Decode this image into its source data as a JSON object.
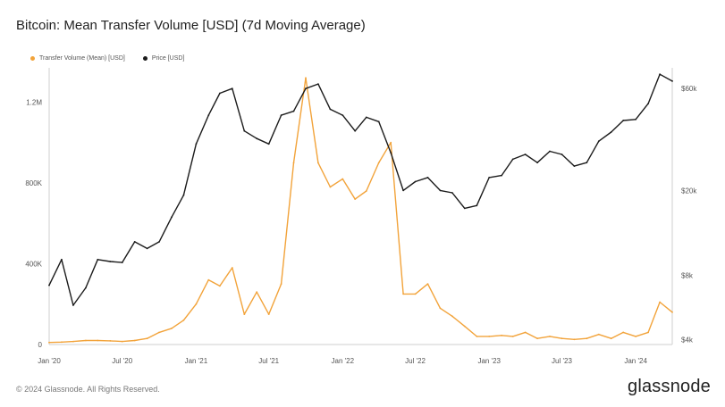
{
  "title": "Bitcoin: Mean Transfer Volume [USD] (7d Moving Average)",
  "footer": "© 2024 Glassnode. All Rights Reserved.",
  "brand": "glassnode",
  "colors": {
    "transfer_volume": "#f2a33a",
    "price": "#1b1b1b",
    "axis": "#cfcfcf",
    "text": "#555555"
  },
  "chart_data": {
    "type": "line",
    "title": "Bitcoin: Mean Transfer Volume [USD] (7d Moving Average)",
    "legend": {
      "placement": "top-left",
      "entries": [
        "Transfer Volume (Mean) [USD]",
        "Price [USD]"
      ]
    },
    "grid": false,
    "x_ticks": [
      "Jan '20",
      "Jul '20",
      "Jan '21",
      "Jul '21",
      "Jan '22",
      "Jul '22",
      "Jan '23",
      "Jul '23",
      "Jan '24"
    ],
    "x_range": [
      "2020-01-01",
      "2024-04-01"
    ],
    "y_left": {
      "ticks": [
        "0",
        "400K",
        "800K",
        "1.2M"
      ],
      "tick_values": [
        0,
        400000,
        800000,
        1200000
      ],
      "range": [
        0,
        1370000
      ]
    },
    "y_right": {
      "scale": "log",
      "ticks": [
        "$4k",
        "$8k",
        "$20k",
        "$60k"
      ],
      "tick_values": [
        4000,
        8000,
        20000,
        60000
      ],
      "range": [
        3800,
        75000
      ]
    },
    "series": [
      {
        "name": "Transfer Volume (Mean) [USD]",
        "axis": "left",
        "points": [
          [
            "2020-01-01",
            10000
          ],
          [
            "2020-02-01",
            12000
          ],
          [
            "2020-03-01",
            15000
          ],
          [
            "2020-04-01",
            20000
          ],
          [
            "2020-05-01",
            20000
          ],
          [
            "2020-06-01",
            18000
          ],
          [
            "2020-07-01",
            15000
          ],
          [
            "2020-08-01",
            20000
          ],
          [
            "2020-09-01",
            30000
          ],
          [
            "2020-10-01",
            60000
          ],
          [
            "2020-11-01",
            80000
          ],
          [
            "2020-12-01",
            120000
          ],
          [
            "2021-01-01",
            200000
          ],
          [
            "2021-02-01",
            320000
          ],
          [
            "2021-03-01",
            290000
          ],
          [
            "2021-04-01",
            380000
          ],
          [
            "2021-05-01",
            150000
          ],
          [
            "2021-06-01",
            260000
          ],
          [
            "2021-07-01",
            150000
          ],
          [
            "2021-08-01",
            300000
          ],
          [
            "2021-09-01",
            900000
          ],
          [
            "2021-10-01",
            1320000
          ],
          [
            "2021-11-01",
            900000
          ],
          [
            "2021-12-01",
            780000
          ],
          [
            "2022-01-01",
            820000
          ],
          [
            "2022-02-01",
            720000
          ],
          [
            "2022-03-01",
            760000
          ],
          [
            "2022-04-01",
            900000
          ],
          [
            "2022-05-01",
            1000000
          ],
          [
            "2022-06-01",
            250000
          ],
          [
            "2022-07-01",
            250000
          ],
          [
            "2022-08-01",
            300000
          ],
          [
            "2022-09-01",
            180000
          ],
          [
            "2022-10-01",
            140000
          ],
          [
            "2022-11-01",
            90000
          ],
          [
            "2022-12-01",
            40000
          ],
          [
            "2023-01-01",
            40000
          ],
          [
            "2023-02-01",
            45000
          ],
          [
            "2023-03-01",
            40000
          ],
          [
            "2023-04-01",
            60000
          ],
          [
            "2023-05-01",
            30000
          ],
          [
            "2023-06-01",
            40000
          ],
          [
            "2023-07-01",
            30000
          ],
          [
            "2023-08-01",
            25000
          ],
          [
            "2023-09-01",
            30000
          ],
          [
            "2023-10-01",
            50000
          ],
          [
            "2023-11-01",
            30000
          ],
          [
            "2023-12-01",
            60000
          ],
          [
            "2024-01-01",
            40000
          ],
          [
            "2024-02-01",
            60000
          ],
          [
            "2024-03-01",
            210000
          ],
          [
            "2024-04-01",
            160000
          ]
        ]
      },
      {
        "name": "Price [USD]",
        "axis": "right",
        "points": [
          [
            "2020-01-01",
            7200
          ],
          [
            "2020-02-01",
            9500
          ],
          [
            "2020-03-01",
            5800
          ],
          [
            "2020-04-01",
            7000
          ],
          [
            "2020-05-01",
            9500
          ],
          [
            "2020-06-01",
            9300
          ],
          [
            "2020-07-01",
            9200
          ],
          [
            "2020-08-01",
            11500
          ],
          [
            "2020-09-01",
            10700
          ],
          [
            "2020-10-01",
            11500
          ],
          [
            "2020-11-01",
            15000
          ],
          [
            "2020-12-01",
            19000
          ],
          [
            "2021-01-01",
            33000
          ],
          [
            "2021-02-01",
            45000
          ],
          [
            "2021-03-01",
            57000
          ],
          [
            "2021-04-01",
            60000
          ],
          [
            "2021-05-01",
            38000
          ],
          [
            "2021-06-01",
            35000
          ],
          [
            "2021-07-01",
            33000
          ],
          [
            "2021-08-01",
            45000
          ],
          [
            "2021-09-01",
            47000
          ],
          [
            "2021-10-01",
            60000
          ],
          [
            "2021-11-01",
            63000
          ],
          [
            "2021-12-01",
            48000
          ],
          [
            "2022-01-01",
            45000
          ],
          [
            "2022-02-01",
            38000
          ],
          [
            "2022-03-01",
            44000
          ],
          [
            "2022-04-01",
            42000
          ],
          [
            "2022-05-01",
            30000
          ],
          [
            "2022-06-01",
            20000
          ],
          [
            "2022-07-01",
            22000
          ],
          [
            "2022-08-01",
            23000
          ],
          [
            "2022-09-01",
            20000
          ],
          [
            "2022-10-01",
            19500
          ],
          [
            "2022-11-01",
            16500
          ],
          [
            "2022-12-01",
            17000
          ],
          [
            "2023-01-01",
            23000
          ],
          [
            "2023-02-01",
            23500
          ],
          [
            "2023-03-01",
            28000
          ],
          [
            "2023-04-01",
            29500
          ],
          [
            "2023-05-01",
            27000
          ],
          [
            "2023-06-01",
            30500
          ],
          [
            "2023-07-01",
            29500
          ],
          [
            "2023-08-01",
            26000
          ],
          [
            "2023-09-01",
            27000
          ],
          [
            "2023-10-01",
            34000
          ],
          [
            "2023-11-01",
            37500
          ],
          [
            "2023-12-01",
            42500
          ],
          [
            "2024-01-01",
            43000
          ],
          [
            "2024-02-01",
            51000
          ],
          [
            "2024-03-01",
            70000
          ],
          [
            "2024-04-01",
            65000
          ]
        ]
      }
    ]
  }
}
